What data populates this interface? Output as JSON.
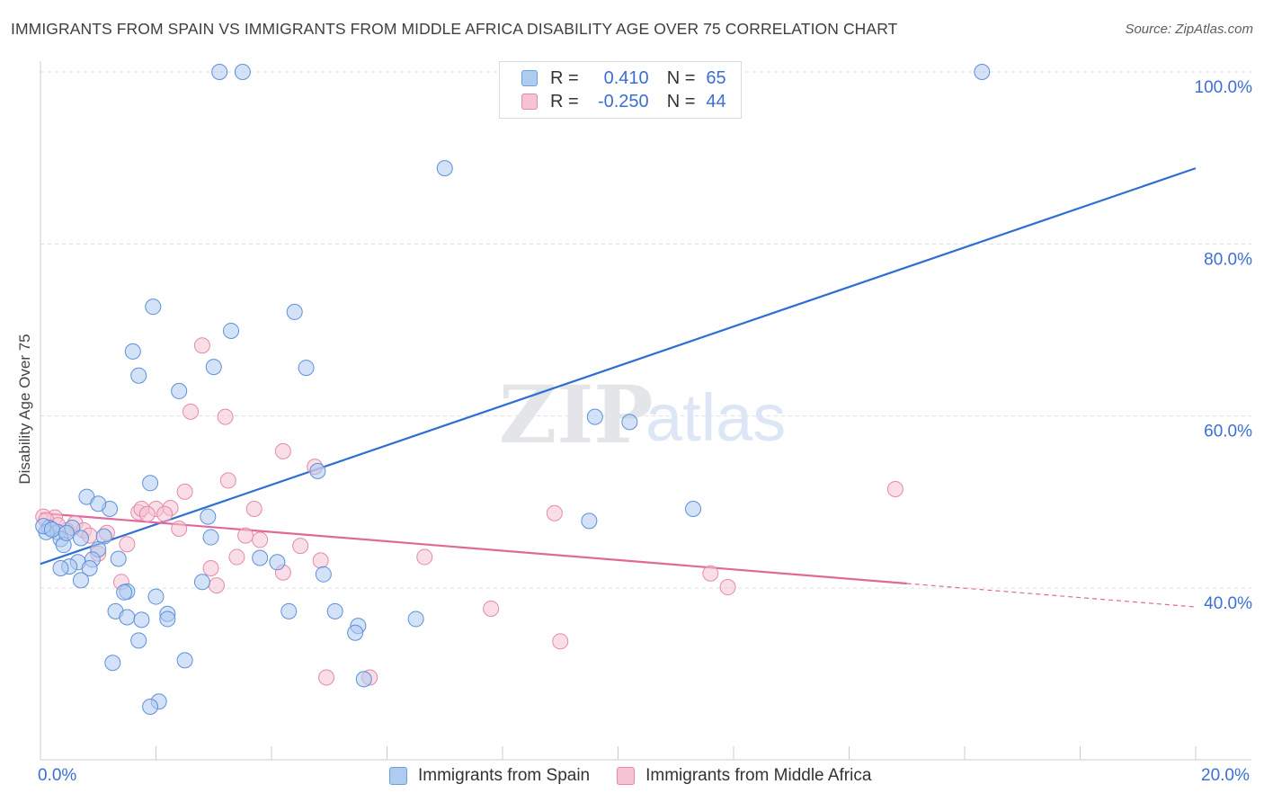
{
  "title": "IMMIGRANTS FROM SPAIN VS IMMIGRANTS FROM MIDDLE AFRICA DISABILITY AGE OVER 75 CORRELATION CHART",
  "source": "Source: ZipAtlas.com",
  "watermark": {
    "zip": "ZIP",
    "atlas": "atlas"
  },
  "legend": {
    "r_label": "R =",
    "n_label": "N =",
    "rows": [
      {
        "r": "0.410",
        "n": "65",
        "color": "#a9c8f0",
        "border": "#6f9ede"
      },
      {
        "r": "-0.250",
        "n": "44",
        "color": "#f7c4d4",
        "border": "#e88aa8"
      }
    ]
  },
  "colors": {
    "series_a_fill": "#aecbf0",
    "series_a_stroke": "#5d90d8",
    "series_a_line": "#2f6fd0",
    "series_b_fill": "#f6c3d3",
    "series_b_stroke": "#e48aa8",
    "series_b_line": "#e0699a",
    "grid": "#dcdfe4",
    "tick_label": "#3b6fd3"
  },
  "chart_data": {
    "type": "scatter",
    "title": "IMMIGRANTS FROM SPAIN VS IMMIGRANTS FROM MIDDLE AFRICA DISABILITY AGE OVER 75 CORRELATION CHART",
    "xlabel": "",
    "ylabel": "Disability Age Over 75",
    "xlim": [
      0,
      20
    ],
    "ylim": [
      20,
      102
    ],
    "x_tick_labels": [
      "0.0%",
      "20.0%"
    ],
    "y_ticks": [
      40,
      60,
      80,
      100
    ],
    "y_tick_labels": [
      "40.0%",
      "60.0%",
      "80.0%",
      "100.0%"
    ],
    "grid": true,
    "series": [
      {
        "name": "Immigrants from Spain",
        "r": 0.41,
        "n": 65,
        "trend": {
          "x": [
            0,
            20
          ],
          "y": [
            42.8,
            88.8
          ],
          "solid_until": 20
        },
        "points": [
          [
            3.1,
            100
          ],
          [
            3.5,
            100
          ],
          [
            16.3,
            100
          ],
          [
            7.0,
            88.8
          ],
          [
            1.95,
            72.7
          ],
          [
            4.4,
            72.1
          ],
          [
            3.3,
            69.9
          ],
          [
            1.6,
            67.5
          ],
          [
            1.7,
            64.7
          ],
          [
            3.0,
            65.7
          ],
          [
            4.6,
            65.6
          ],
          [
            2.4,
            62.9
          ],
          [
            9.6,
            59.9
          ],
          [
            10.2,
            59.3
          ],
          [
            0.8,
            50.6
          ],
          [
            1.2,
            49.2
          ],
          [
            1.0,
            49.8
          ],
          [
            1.9,
            52.2
          ],
          [
            4.8,
            53.6
          ],
          [
            11.3,
            49.2
          ],
          [
            9.5,
            47.8
          ],
          [
            2.9,
            48.3
          ],
          [
            0.15,
            47.0
          ],
          [
            0.3,
            46.5
          ],
          [
            0.55,
            47.0
          ],
          [
            0.35,
            45.7
          ],
          [
            0.7,
            45.8
          ],
          [
            1.1,
            46.0
          ],
          [
            2.95,
            45.9
          ],
          [
            0.1,
            46.5
          ],
          [
            1.0,
            44.5
          ],
          [
            0.4,
            45.0
          ],
          [
            0.9,
            43.3
          ],
          [
            0.65,
            43.0
          ],
          [
            1.35,
            43.4
          ],
          [
            0.5,
            42.5
          ],
          [
            0.35,
            42.3
          ],
          [
            0.85,
            42.3
          ],
          [
            3.8,
            43.5
          ],
          [
            4.1,
            43.0
          ],
          [
            0.7,
            40.9
          ],
          [
            2.8,
            40.7
          ],
          [
            4.9,
            41.6
          ],
          [
            1.5,
            39.6
          ],
          [
            1.45,
            39.5
          ],
          [
            2.0,
            39.0
          ],
          [
            1.3,
            37.3
          ],
          [
            1.5,
            36.6
          ],
          [
            2.2,
            37.0
          ],
          [
            2.2,
            36.4
          ],
          [
            4.3,
            37.3
          ],
          [
            5.1,
            37.3
          ],
          [
            1.75,
            36.3
          ],
          [
            6.5,
            36.4
          ],
          [
            5.5,
            35.6
          ],
          [
            5.45,
            34.8
          ],
          [
            1.7,
            33.9
          ],
          [
            2.5,
            31.6
          ],
          [
            1.25,
            31.3
          ],
          [
            5.6,
            29.4
          ],
          [
            2.05,
            26.8
          ],
          [
            1.9,
            26.2
          ],
          [
            0.05,
            47.2
          ],
          [
            0.2,
            46.8
          ],
          [
            0.45,
            46.4
          ]
        ]
      },
      {
        "name": "Immigrants from Middle Africa",
        "r": -0.25,
        "n": 44,
        "trend": {
          "x": [
            0,
            20
          ],
          "y": [
            48.7,
            37.8
          ],
          "solid_until": 15
        }
      }
    ],
    "points_b": [
      [
        2.8,
        68.2
      ],
      [
        2.6,
        60.5
      ],
      [
        3.2,
        59.9
      ],
      [
        4.2,
        55.9
      ],
      [
        4.75,
        54.1
      ],
      [
        3.25,
        52.5
      ],
      [
        2.5,
        51.2
      ],
      [
        14.8,
        51.5
      ],
      [
        3.7,
        49.2
      ],
      [
        1.7,
        48.8
      ],
      [
        1.75,
        49.2
      ],
      [
        2.0,
        49.2
      ],
      [
        2.25,
        49.3
      ],
      [
        1.85,
        48.6
      ],
      [
        2.15,
        48.6
      ],
      [
        8.9,
        48.7
      ],
      [
        0.6,
        47.5
      ],
      [
        0.25,
        48.2
      ],
      [
        0.05,
        48.3
      ],
      [
        0.45,
        46.7
      ],
      [
        0.75,
        46.7
      ],
      [
        1.15,
        46.4
      ],
      [
        0.85,
        46.1
      ],
      [
        2.4,
        46.9
      ],
      [
        3.55,
        46.1
      ],
      [
        3.8,
        45.6
      ],
      [
        1.5,
        45.1
      ],
      [
        4.5,
        44.9
      ],
      [
        1.0,
        44.0
      ],
      [
        3.4,
        43.6
      ],
      [
        4.85,
        43.2
      ],
      [
        6.65,
        43.6
      ],
      [
        2.95,
        42.3
      ],
      [
        4.2,
        41.8
      ],
      [
        11.6,
        41.7
      ],
      [
        1.4,
        40.7
      ],
      [
        3.05,
        40.3
      ],
      [
        11.9,
        40.1
      ],
      [
        7.8,
        37.6
      ],
      [
        9.0,
        33.8
      ],
      [
        4.95,
        29.6
      ],
      [
        5.7,
        29.6
      ],
      [
        0.1,
        47.9
      ],
      [
        0.3,
        47.3
      ]
    ],
    "series_names": [
      "Immigrants from Spain",
      "Immigrants from Middle Africa"
    ]
  }
}
